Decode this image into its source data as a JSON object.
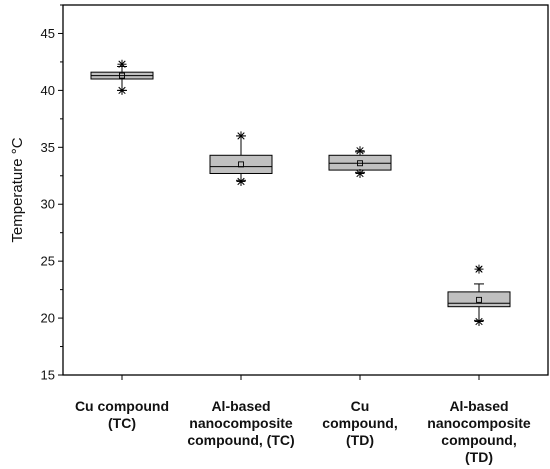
{
  "chart_data": {
    "type": "box",
    "title": "",
    "xlabel": "",
    "ylabel": "Temperature °C",
    "ylim": [
      15,
      47.5
    ],
    "yticks": [
      15,
      20,
      25,
      30,
      35,
      40,
      45
    ],
    "grid": false,
    "legend": "none",
    "box_fill": "#c0c0c0",
    "categories": [
      [
        "Cu compound",
        "(TC)"
      ],
      [
        "Al-based",
        "nanocomposite",
        "compound, (TC)"
      ],
      [
        "Cu",
        "compound,",
        "(TD)"
      ],
      [
        "Al-based",
        "nanocomposite",
        "compound,",
        "(TD)"
      ]
    ],
    "boxes": [
      {
        "whisker_low": 40.0,
        "q1": 41.0,
        "median": 41.3,
        "q3": 41.6,
        "whisker_high": 42.1,
        "mean": 41.3,
        "min": 40.0,
        "max": 42.3,
        "outliers": []
      },
      {
        "whisker_low": 32.1,
        "q1": 32.7,
        "median": 33.3,
        "q3": 34.3,
        "whisker_high": 36.0,
        "mean": 33.5,
        "min": 32.0,
        "max": 36.0,
        "outliers": []
      },
      {
        "whisker_low": 32.8,
        "q1": 33.0,
        "median": 33.6,
        "q3": 34.3,
        "whisker_high": 34.6,
        "mean": 33.6,
        "min": 32.7,
        "max": 34.7,
        "outliers": []
      },
      {
        "whisker_low": 19.8,
        "q1": 21.0,
        "median": 21.3,
        "q3": 22.3,
        "whisker_high": 23.0,
        "mean": 21.6,
        "min": 19.7,
        "max": 24.3,
        "outliers": [
          24.3
        ]
      }
    ]
  }
}
